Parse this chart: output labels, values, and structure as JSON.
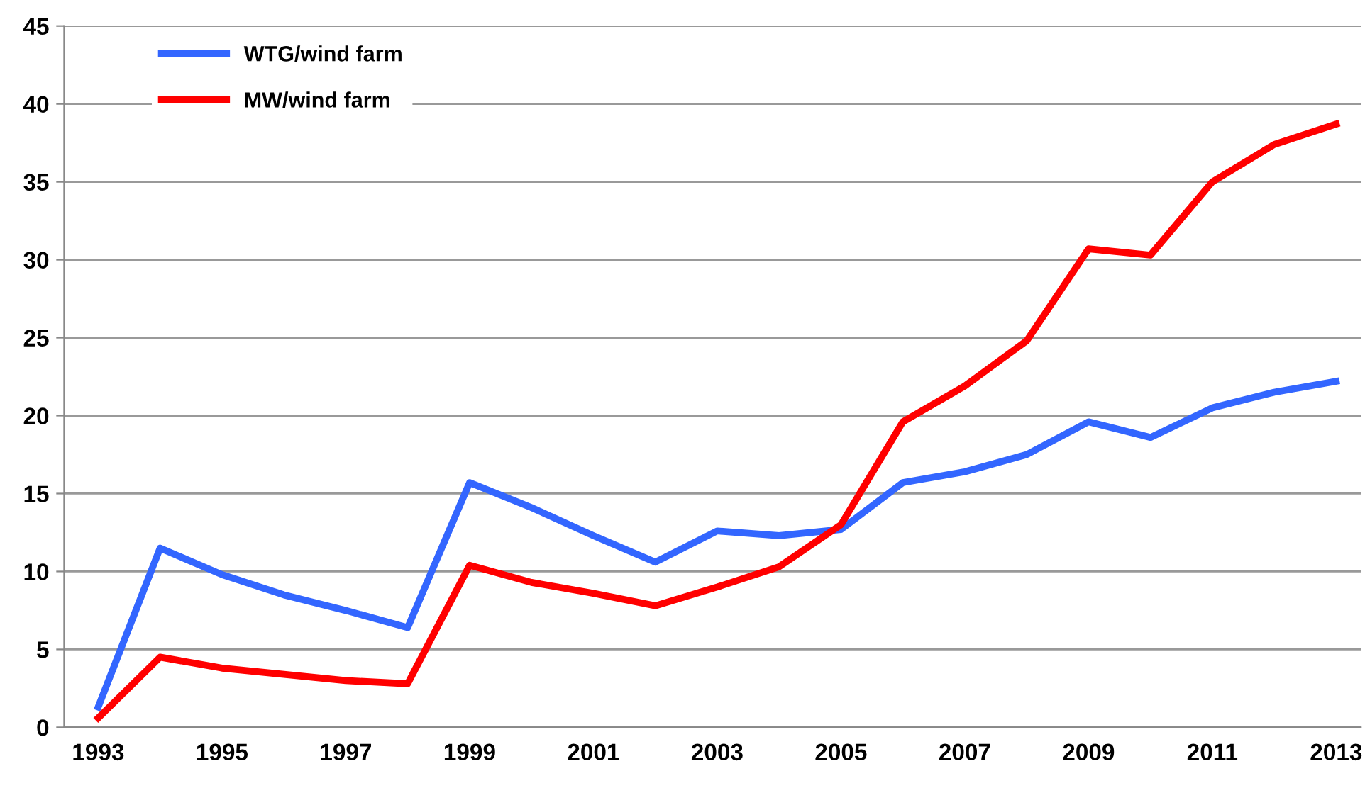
{
  "chart_data": {
    "type": "line",
    "categories": [
      "1993",
      null,
      "1995",
      null,
      "1997",
      null,
      "1999",
      null,
      "2001",
      null,
      "2003",
      null,
      "2005",
      null,
      "2007",
      null,
      "2009",
      null,
      "2011",
      null,
      "2013"
    ],
    "series": [
      {
        "name": "WTG/wind farm",
        "color": "#3366ff",
        "values": [
          1.3,
          11.5,
          9.8,
          8.5,
          7.5,
          6.4,
          15.7,
          14.1,
          12.3,
          10.6,
          12.6,
          12.3,
          12.7,
          15.7,
          16.4,
          17.5,
          19.6,
          18.6,
          20.5,
          21.5,
          22.2
        ]
      },
      {
        "name": "MW/wind farm",
        "color": "#ff0000",
        "values": [
          0.6,
          4.5,
          3.8,
          3.4,
          3.0,
          2.8,
          10.4,
          9.3,
          8.6,
          7.8,
          9.0,
          10.3,
          13.0,
          19.6,
          21.9,
          24.8,
          30.7,
          30.3,
          35.0,
          37.4,
          38.7
        ]
      }
    ],
    "ylim": [
      0,
      45
    ],
    "yticks": [
      0,
      5,
      10,
      15,
      20,
      25,
      30,
      35,
      40,
      45
    ],
    "grid": "y",
    "legend": "top left",
    "marker": "none",
    "line_style": "solid"
  }
}
